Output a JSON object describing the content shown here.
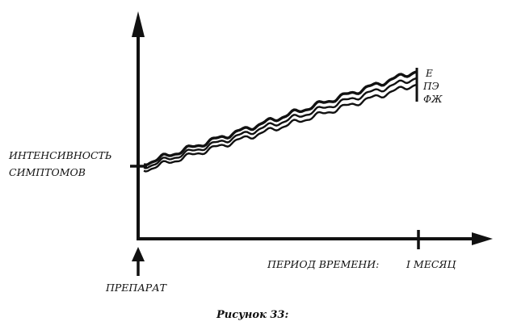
{
  "chart_data": {
    "type": "line",
    "x": [
      "start",
      "1 month"
    ],
    "xlabel": "ПЕРИОД ВРЕМЕНИ:",
    "x_tick_labels": [
      "I МЕСЯЦ"
    ],
    "ylabel_lines": [
      "ИНТЕНСИВНОСТЬ",
      "СИМПТОМОВ"
    ],
    "origin_label": "ПРЕПАРАТ",
    "series": [
      {
        "name": "Е",
        "values": [
          0.0,
          0.86
        ]
      },
      {
        "name": "ПЭ",
        "values": [
          -0.03,
          0.8
        ]
      },
      {
        "name": "ФЖ",
        "values": [
          -0.06,
          0.74
        ]
      }
    ],
    "curve_style": "wavy",
    "grid": false,
    "legend": "line-end labels, right",
    "colors": {
      "ink": "#111111",
      "paper": "#ffffff"
    }
  },
  "caption": "Рисунок 33:"
}
